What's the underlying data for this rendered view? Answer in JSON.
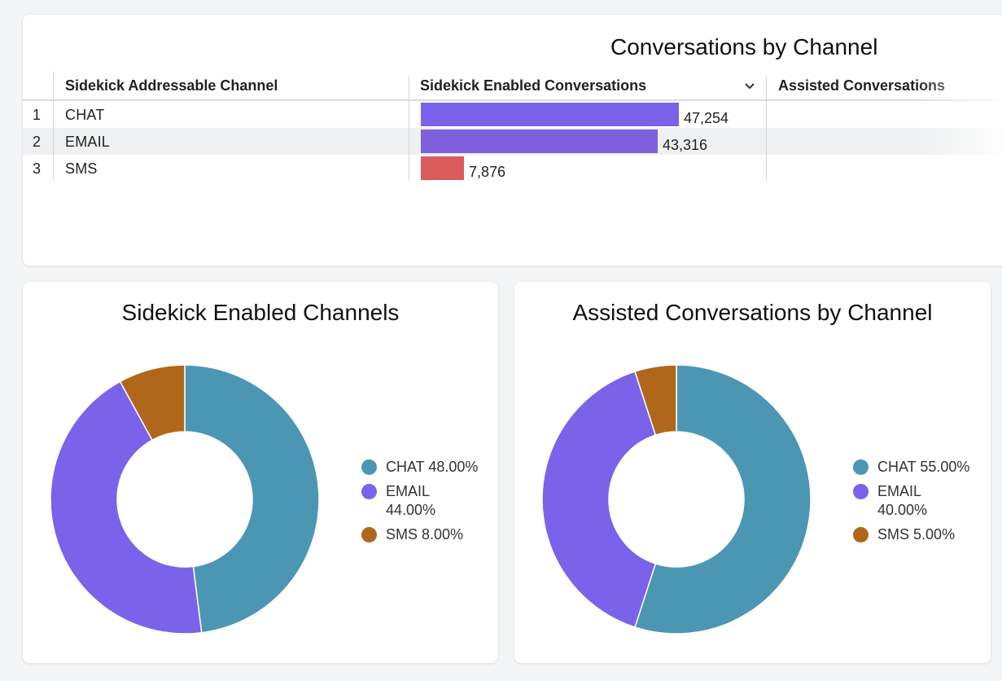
{
  "table_card": {
    "title": "Conversations by Channel",
    "columns": [
      "Sidekick Addressable Channel",
      "Sidekick Enabled Conversations",
      "Assisted Conversations"
    ],
    "sorted_column_icon": "chevron-down-icon",
    "rows": [
      {
        "index": "1",
        "channel": "CHAT",
        "value_label": "47,254",
        "value": 47254,
        "color": "#7b62ea"
      },
      {
        "index": "2",
        "channel": "EMAIL",
        "value_label": "43,316",
        "value": 43316,
        "color": "#7f5fdc"
      },
      {
        "index": "3",
        "channel": "SMS",
        "value_label": "7,876",
        "value": 7876,
        "color": "#d95b5b"
      }
    ]
  },
  "donut_cards": [
    {
      "title": "Sidekick Enabled Channels",
      "legend": [
        {
          "name": "CHAT",
          "pct_label": "48.00%",
          "color": "#4b97b3"
        },
        {
          "name": "EMAIL",
          "pct_label": "44.00%",
          "color": "#7b62ea"
        },
        {
          "name": "SMS",
          "pct_label": "8.00%",
          "color": "#b0671b"
        }
      ]
    },
    {
      "title": "Assisted Conversations by Channel",
      "legend": [
        {
          "name": "CHAT",
          "pct_label": "55.00%",
          "color": "#4b97b3"
        },
        {
          "name": "EMAIL",
          "pct_label": "40.00%",
          "color": "#7b62ea"
        },
        {
          "name": "SMS",
          "pct_label": "5.00%",
          "color": "#b0671b"
        }
      ]
    }
  ],
  "chart_data": [
    {
      "type": "bar",
      "title": "Conversations by Channel",
      "categories": [
        "CHAT",
        "EMAIL",
        "SMS"
      ],
      "series": [
        {
          "name": "Sidekick Enabled Conversations",
          "values": [
            47254,
            43316,
            7876
          ]
        }
      ]
    },
    {
      "type": "pie",
      "title": "Sidekick Enabled Channels",
      "categories": [
        "CHAT",
        "EMAIL",
        "SMS"
      ],
      "values": [
        48.0,
        44.0,
        8.0
      ],
      "legend": "right"
    },
    {
      "type": "pie",
      "title": "Assisted Conversations by Channel",
      "categories": [
        "CHAT",
        "EMAIL",
        "SMS"
      ],
      "values": [
        55.0,
        40.0,
        5.0
      ],
      "legend": "right"
    }
  ]
}
